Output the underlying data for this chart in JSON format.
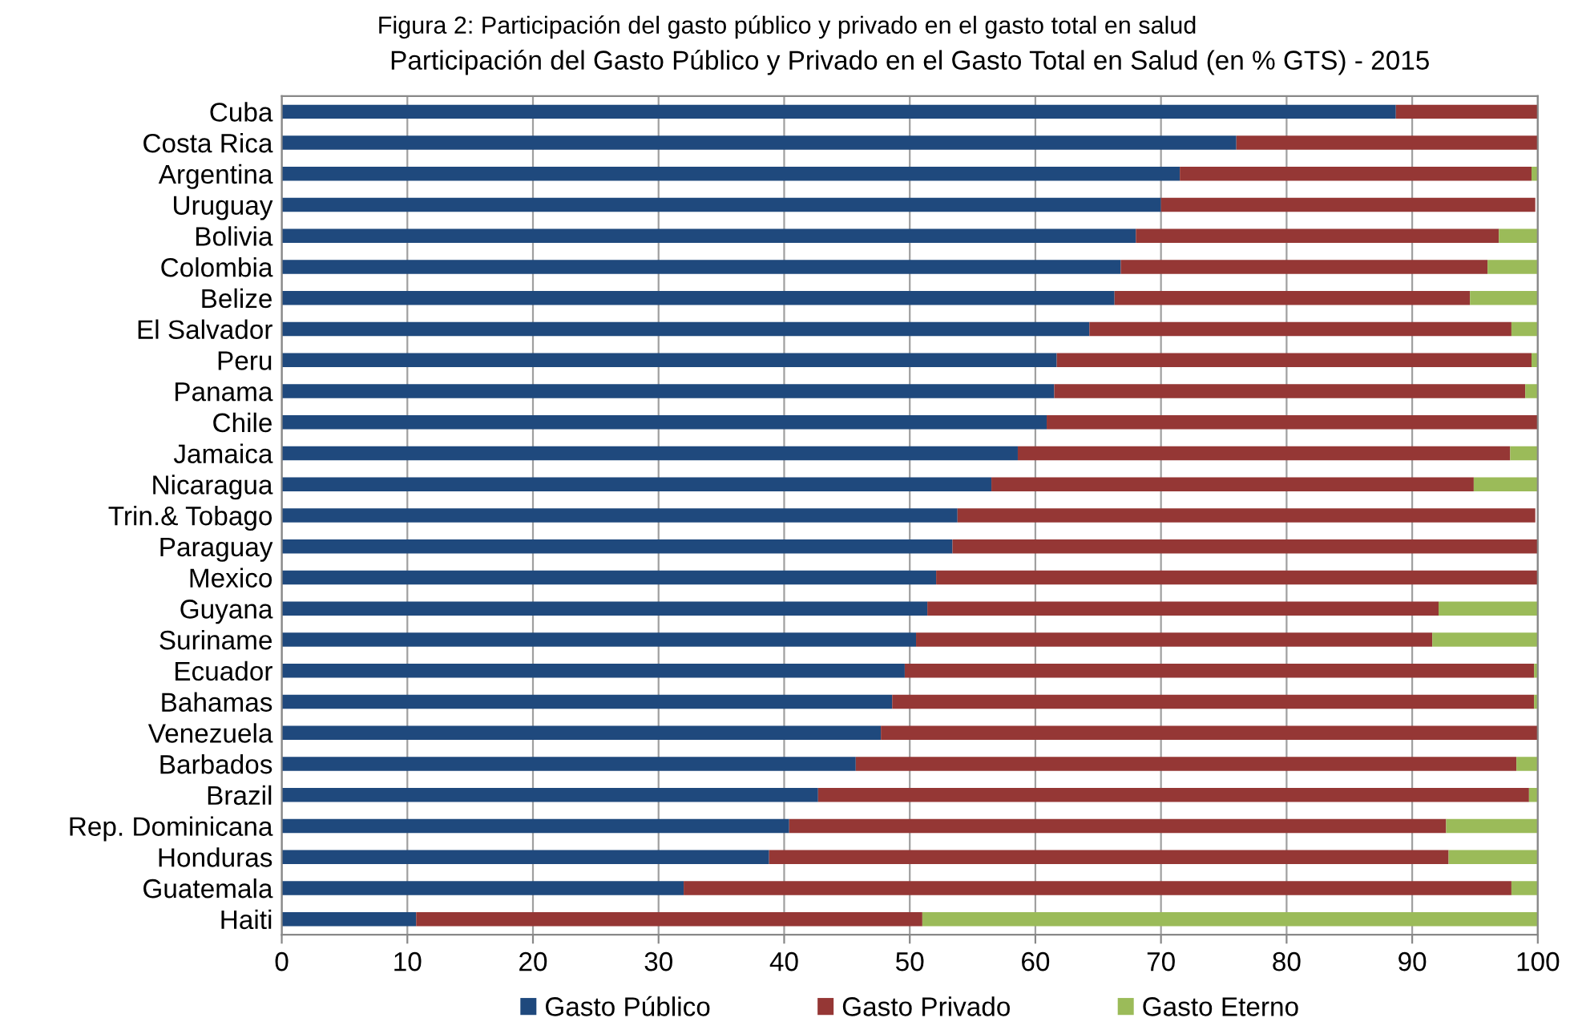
{
  "chart_data": {
    "type": "bar",
    "orientation": "horizontal",
    "stacked": true,
    "title": "Participación del Gasto Público y Privado en el Gasto Total en Salud (en % GTS) - 2015",
    "annotations": [
      "Figura 2: Participación del gasto público y privado en el gasto total en salud"
    ],
    "categories": [
      "Cuba",
      "Costa Rica",
      "Argentina",
      "Uruguay",
      "Bolivia",
      "Colombia",
      "Belize",
      "El Salvador",
      "Peru",
      "Panama",
      "Chile",
      "Jamaica",
      "Nicaragua",
      "Trin.& Tobago",
      "Paraguay",
      "Mexico",
      "Guyana",
      "Suriname",
      "Ecuador",
      "Bahamas",
      "Venezuela",
      "Barbados",
      "Brazil",
      "Rep. Dominicana",
      "Honduras",
      "Guatemala",
      "Haiti"
    ],
    "series": [
      {
        "name": "Gasto Público",
        "color": "#1f497d",
        "values": [
          88.7,
          76.0,
          71.5,
          70.0,
          68.0,
          66.8,
          66.3,
          64.3,
          61.7,
          61.5,
          60.9,
          58.6,
          56.5,
          53.8,
          53.4,
          52.1,
          51.4,
          50.5,
          49.6,
          48.6,
          47.7,
          45.7,
          42.7,
          40.4,
          38.8,
          32.0,
          10.7
        ]
      },
      {
        "name": "Gasto Privado",
        "color": "#953735",
        "values": [
          11.3,
          24.0,
          28.0,
          29.8,
          28.9,
          29.2,
          28.3,
          33.6,
          37.8,
          37.5,
          39.1,
          39.2,
          38.4,
          46.0,
          46.6,
          47.9,
          40.7,
          41.1,
          50.1,
          51.1,
          52.3,
          52.6,
          56.6,
          52.3,
          54.1,
          65.9,
          40.3
        ]
      },
      {
        "name": "Gasto Eterno",
        "color": "#9bbb59",
        "values": [
          0,
          0,
          0.5,
          null,
          3.1,
          4.0,
          5.4,
          2.1,
          0.5,
          1.0,
          0,
          2.2,
          5.1,
          null,
          0,
          0,
          7.9,
          8.4,
          0.3,
          0.3,
          0,
          1.7,
          0.7,
          7.3,
          7.1,
          2.1,
          49.0
        ]
      }
    ],
    "xlim": [
      0,
      100
    ],
    "xticks": [
      0,
      10,
      20,
      30,
      40,
      50,
      60,
      70,
      80,
      90,
      100
    ],
    "grid": "x",
    "legend": "bottom"
  }
}
